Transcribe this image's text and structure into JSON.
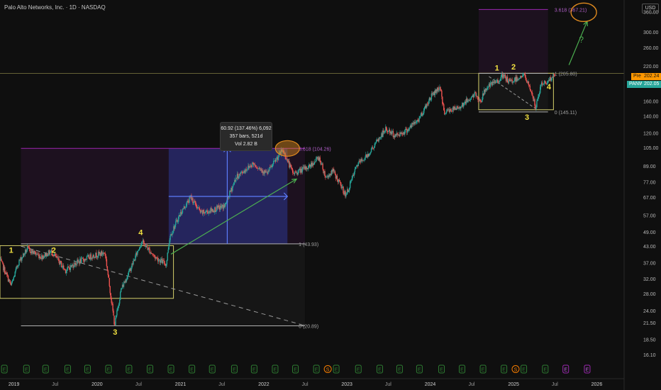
{
  "title": "Palo Alto Networks, Inc. · 1D · NASDAQ",
  "currency": "USD",
  "colors": {
    "background": "#0f0f0f",
    "up": "#26a69a",
    "down": "#ef5350",
    "fib_purple": "#9c27b0",
    "label_yellow": "#f0e040",
    "box_yellow": "#d4cf6a",
    "arrow_green": "#4caf50",
    "projection_blue": "#3d5afe",
    "ellipse_orange": "#e08a1e",
    "earnings_green": "#2e7d32",
    "dividend_orange": "#f57c00",
    "pre_market": "#ff9800",
    "last_price": "#26a69a"
  },
  "price_labels": {
    "pre_label": "Pre",
    "pre_value": "202.24",
    "ticker": "PANW",
    "last_value": "202.05"
  },
  "measure_tooltip": {
    "line1": "60.92 (137.46%) 6,092",
    "line2": "357 bars, 521d",
    "line3": "Vol 2.82 B"
  },
  "chart_data": {
    "type": "candlestick",
    "y_scale": "log",
    "y_range": [
      15.5,
      400
    ],
    "x_range": [
      "2018-11-01",
      "2026-05-01"
    ],
    "y_ticks": [
      16.1,
      18.5,
      21.5,
      24.0,
      28.0,
      32.0,
      37.0,
      43.0,
      49.0,
      57.0,
      67.0,
      77.0,
      89.0,
      105.0,
      120.0,
      140.0,
      160.0,
      190.0,
      220.0,
      260.0,
      300.0,
      360.0
    ],
    "x_ticks": [
      {
        "label": "2019",
        "date": "2019-01-01"
      },
      {
        "label": "Jul",
        "date": "2019-07-01"
      },
      {
        "label": "2020",
        "date": "2020-01-01"
      },
      {
        "label": "Jul",
        "date": "2020-07-01"
      },
      {
        "label": "2021",
        "date": "2021-01-01"
      },
      {
        "label": "Jul",
        "date": "2021-07-01"
      },
      {
        "label": "2022",
        "date": "2022-01-01"
      },
      {
        "label": "Jul",
        "date": "2022-07-01"
      },
      {
        "label": "2023",
        "date": "2023-01-01"
      },
      {
        "label": "Jul",
        "date": "2023-07-01"
      },
      {
        "label": "2024",
        "date": "2024-01-01"
      },
      {
        "label": "Jul",
        "date": "2024-07-01"
      },
      {
        "label": "2025",
        "date": "2025-01-01"
      },
      {
        "label": "Jul",
        "date": "2025-07-01"
      },
      {
        "label": "2026",
        "date": "2026-01-01"
      }
    ],
    "price_path": [
      [
        "2018-11-01",
        38
      ],
      [
        "2018-12-20",
        30
      ],
      [
        "2019-01-20",
        37
      ],
      [
        "2019-03-01",
        42
      ],
      [
        "2019-05-01",
        39
      ],
      [
        "2019-06-15",
        41
      ],
      [
        "2019-08-15",
        34.5
      ],
      [
        "2019-10-01",
        37
      ],
      [
        "2019-12-15",
        39.5
      ],
      [
        "2020-02-05",
        40.5
      ],
      [
        "2020-03-18",
        21
      ],
      [
        "2020-04-15",
        29
      ],
      [
        "2020-06-01",
        36
      ],
      [
        "2020-07-15",
        45
      ],
      [
        "2020-09-10",
        39
      ],
      [
        "2020-10-30",
        36.5
      ],
      [
        "2020-11-15",
        47
      ],
      [
        "2021-01-01",
        58
      ],
      [
        "2021-02-15",
        67
      ],
      [
        "2021-04-01",
        58
      ],
      [
        "2021-06-01",
        60
      ],
      [
        "2021-07-15",
        62
      ],
      [
        "2021-09-01",
        80
      ],
      [
        "2021-11-15",
        91
      ],
      [
        "2022-01-15",
        83
      ],
      [
        "2022-03-25",
        103
      ],
      [
        "2022-05-10",
        83
      ],
      [
        "2022-07-15",
        88
      ],
      [
        "2022-09-01",
        96
      ],
      [
        "2022-10-01",
        80
      ],
      [
        "2022-11-01",
        85
      ],
      [
        "2022-12-28",
        68
      ],
      [
        "2023-02-15",
        90
      ],
      [
        "2023-04-01",
        98
      ],
      [
        "2023-06-20",
        124
      ],
      [
        "2023-08-01",
        117
      ],
      [
        "2023-09-15",
        122
      ],
      [
        "2023-11-10",
        135
      ],
      [
        "2024-01-10",
        170
      ],
      [
        "2024-02-15",
        182
      ],
      [
        "2024-03-01",
        145
      ],
      [
        "2024-05-01",
        150
      ],
      [
        "2024-07-15",
        170
      ],
      [
        "2024-08-10",
        160
      ],
      [
        "2024-09-01",
        180
      ],
      [
        "2024-10-15",
        190
      ],
      [
        "2024-11-15",
        201
      ],
      [
        "2024-12-15",
        190
      ],
      [
        "2025-02-15",
        203
      ],
      [
        "2025-03-20",
        175
      ],
      [
        "2025-04-08",
        150
      ],
      [
        "2025-05-01",
        185
      ],
      [
        "2025-06-10",
        195
      ],
      [
        "2025-07-01",
        202
      ]
    ],
    "fib_levels": [
      {
        "label": "3.618 (104.26)",
        "date_from": "2019-02-01",
        "date_to": "2022-07-01",
        "price": 104.26,
        "label_date": "2022-05-25"
      },
      {
        "label": "1 (43.93)",
        "date_from": "2019-02-01",
        "date_to": "2022-07-01",
        "price": 43.93,
        "label_date": "2022-05-25"
      },
      {
        "label": "0 (20.89)",
        "date_from": "2019-02-01",
        "date_to": "2022-07-01",
        "price": 20.89,
        "label_date": "2022-05-25"
      },
      {
        "label": "3.618 (367.21)",
        "date_from": "2024-08-01",
        "date_to": "2025-06-01",
        "price": 367.21,
        "label_date": "2025-06-20"
      },
      {
        "label": "1 (205.80)",
        "date_from": "2024-08-01",
        "date_to": "2025-06-01",
        "price": 205.8,
        "label_date": "2025-06-20"
      },
      {
        "label": "0 (145.11)",
        "date_from": "2024-08-01",
        "date_to": "2025-06-01",
        "price": 145.11,
        "label_date": "2025-06-20"
      }
    ],
    "wave_labels": [
      {
        "label": "1",
        "date": "2018-12-20",
        "price": 40.5
      },
      {
        "label": "2",
        "date": "2019-06-25",
        "price": 40.5
      },
      {
        "label": "3",
        "date": "2020-03-20",
        "price": 19.3
      },
      {
        "label": "4",
        "date": "2020-07-10",
        "price": 47.5
      },
      {
        "label": "1",
        "date": "2024-10-20",
        "price": 211
      },
      {
        "label": "2",
        "date": "2025-01-01",
        "price": 213
      },
      {
        "label": "3",
        "date": "2025-03-01",
        "price": 135
      },
      {
        "label": "4",
        "date": "2025-06-05",
        "price": 178
      }
    ],
    "annotation_question": "?",
    "earnings_markers": [
      "2018-11-20",
      "2019-02-25",
      "2019-05-20",
      "2019-08-25",
      "2019-11-20",
      "2020-02-20",
      "2020-05-20",
      "2020-08-20",
      "2020-11-20",
      "2021-02-20",
      "2021-05-20",
      "2021-08-25",
      "2021-11-20",
      "2022-02-20",
      "2022-05-20",
      "2022-08-20",
      "2022-11-15",
      "2023-02-20",
      "2023-05-25",
      "2023-08-20",
      "2023-11-15",
      "2024-02-20",
      "2024-05-20",
      "2024-08-20",
      "2024-11-20",
      "2025-02-15",
      "2025-05-20"
    ],
    "earnings_label": "E",
    "split_markers": [
      "2022-09-14",
      "2024-12-16"
    ],
    "split_label": "S",
    "upcoming_markers": [
      "2025-08-18",
      "2025-11-20"
    ]
  }
}
